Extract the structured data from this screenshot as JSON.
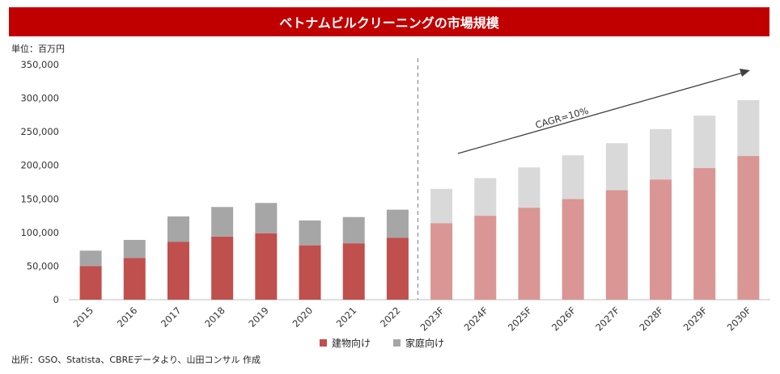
{
  "header": {
    "title": "ベトナムビルクリーニングの市場規模"
  },
  "unit_label": "単位：百万円",
  "source": "出所：GSO、Statista、CBREデータより、山田コンサル 作成",
  "annotation": "CAGR=10%",
  "colors": {
    "title_bg": "#c00000",
    "building_actual": "#c0504d",
    "household_actual": "#a6a6a6",
    "building_forecast": "#d99694",
    "household_forecast": "#d9d9d9"
  },
  "legend": [
    {
      "label": "建物向け",
      "color": "#c0504d"
    },
    {
      "label": "家庭向け",
      "color": "#a6a6a6"
    }
  ],
  "chart_data": {
    "type": "bar",
    "stacked": true,
    "categories": [
      "2015",
      "2016",
      "2017",
      "2018",
      "2019",
      "2020",
      "2021",
      "2022",
      "2023F",
      "2024F",
      "2025F",
      "2026F",
      "2027F",
      "2028F",
      "2029F",
      "2030F"
    ],
    "series": [
      {
        "name": "建物向け",
        "values": [
          50000,
          62000,
          86000,
          94000,
          99000,
          81000,
          84000,
          92000,
          114000,
          125000,
          137000,
          150000,
          163000,
          179000,
          196000,
          214000
        ]
      },
      {
        "name": "家庭向け",
        "values": [
          23000,
          27000,
          38000,
          44000,
          45000,
          37000,
          39000,
          42000,
          51000,
          56000,
          60000,
          65000,
          70000,
          75000,
          78000,
          83000
        ]
      }
    ],
    "forecast_start_index": 8,
    "y_ticks": [
      "0",
      "50,000",
      "100,000",
      "150,000",
      "200,000",
      "250,000",
      "300,000",
      "350,000"
    ],
    "ylim": [
      0,
      350000
    ],
    "legend_position": "bottom"
  }
}
